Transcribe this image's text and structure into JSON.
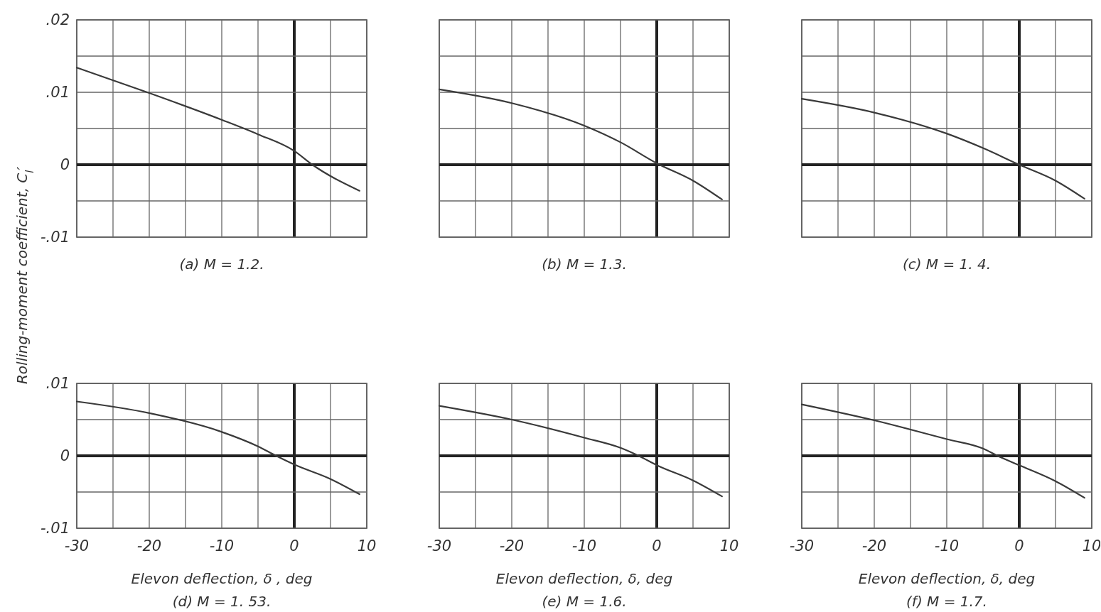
{
  "chart_data": [
    {
      "type": "line",
      "title": "(a) M = 1.2.",
      "ylabel": "Rolling-moment coefficient, C$_{l}$′",
      "x": [
        -30,
        -20,
        -10,
        -5,
        0,
        2.5,
        9
      ],
      "series": [
        {
          "color": "#3a3a3a",
          "values": [
            0.0134,
            0.0099,
            0.0062,
            0.0042,
            0.0019,
            0,
            -0.0036
          ]
        }
      ],
      "xlim": [
        -30,
        10
      ],
      "ylim": [
        -0.01,
        0.02
      ],
      "xticks": [
        {
          "value": -30,
          "label": null
        },
        {
          "value": -25,
          "label": null
        },
        {
          "value": -20,
          "label": null
        },
        {
          "value": -15,
          "label": null
        },
        {
          "value": -10,
          "label": null
        },
        {
          "value": -5,
          "label": null
        },
        {
          "value": 0,
          "label": null
        },
        {
          "value": 5,
          "label": null
        },
        {
          "value": 10,
          "label": null
        }
      ],
      "yticks": [
        {
          "value": -0.01,
          "label": "-.01"
        },
        {
          "value": -0.005,
          "label": null
        },
        0,
        {
          "value": 0.005,
          "label": null
        },
        {
          "value": 0.01,
          "label": ".01"
        },
        {
          "value": 0.015,
          "label": null
        },
        {
          "value": 0.02,
          "label": ".02"
        }
      ],
      "grid": true,
      "tick_labels": "y"
    },
    {
      "type": "line",
      "title": "(b)  M = 1.3.",
      "x": [
        -30,
        -20,
        -10,
        -5,
        0,
        5,
        9
      ],
      "series": [
        {
          "color": "#3a3a3a",
          "values": [
            0.0104,
            0.0085,
            0.0054,
            0.0031,
            0.0002,
            -0.0022,
            -0.0048
          ]
        }
      ],
      "xlim": [
        -30,
        10
      ],
      "ylim": [
        -0.01,
        0.02
      ],
      "xticks": [
        {
          "value": -30,
          "label": null
        },
        {
          "value": -25,
          "label": null
        },
        {
          "value": -20,
          "label": null
        },
        {
          "value": -15,
          "label": null
        },
        {
          "value": -10,
          "label": null
        },
        {
          "value": -5,
          "label": null
        },
        {
          "value": 0,
          "label": null
        },
        {
          "value": 5,
          "label": null
        },
        {
          "value": 10,
          "label": null
        }
      ],
      "yticks": [
        {
          "value": -0.01,
          "label": null
        },
        {
          "value": -0.005,
          "label": null
        },
        {
          "value": 0,
          "label": null
        },
        {
          "value": 0.005,
          "label": null
        },
        {
          "value": 0.01,
          "label": null
        },
        {
          "value": 0.015,
          "label": null
        },
        {
          "value": 0.02,
          "label": null
        }
      ],
      "grid": true,
      "tick_labels": false
    },
    {
      "type": "line",
      "title": "(c) M = 1. 4.",
      "x": [
        -30,
        -20,
        -10,
        -5,
        0,
        5,
        9
      ],
      "series": [
        {
          "color": "#3a3a3a",
          "values": [
            0.0091,
            0.0072,
            0.0043,
            0.0023,
            0,
            -0.0022,
            -0.0047
          ]
        }
      ],
      "xlim": [
        -30,
        10
      ],
      "ylim": [
        -0.01,
        0.02
      ],
      "xticks": [
        {
          "value": -30,
          "label": null
        },
        {
          "value": -25,
          "label": null
        },
        {
          "value": -20,
          "label": null
        },
        {
          "value": -15,
          "label": null
        },
        {
          "value": -10,
          "label": null
        },
        {
          "value": -5,
          "label": null
        },
        {
          "value": 0,
          "label": null
        },
        {
          "value": 5,
          "label": null
        },
        {
          "value": 10,
          "label": null
        }
      ],
      "yticks": [
        {
          "value": -0.01,
          "label": null
        },
        {
          "value": -0.005,
          "label": null
        },
        {
          "value": 0,
          "label": null
        },
        {
          "value": 0.005,
          "label": null
        },
        {
          "value": 0.01,
          "label": null
        },
        {
          "value": 0.015,
          "label": null
        },
        {
          "value": 0.02,
          "label": null
        }
      ],
      "grid": true,
      "tick_labels": false
    },
    {
      "type": "line",
      "title": "(d) M = 1. 53.",
      "xlabel": "Elevon deflection, δ , deg",
      "x": [
        -30,
        -20,
        -10,
        -5,
        -2.5,
        0,
        5,
        9
      ],
      "series": [
        {
          "color": "#3a3a3a",
          "values": [
            0.0075,
            0.0059,
            0.0033,
            0.0013,
            0,
            -0.0012,
            -0.0032,
            -0.0053
          ]
        }
      ],
      "xlim": [
        -30,
        10
      ],
      "ylim": [
        -0.01,
        0.01
      ],
      "xticks": [
        {
          "value": -30,
          "label": "-30"
        },
        {
          "value": -25,
          "label": null
        },
        {
          "value": -20,
          "label": "-20"
        },
        {
          "value": -15,
          "label": null
        },
        {
          "value": -10,
          "label": "-10"
        },
        {
          "value": -5,
          "label": null
        },
        {
          "value": 0,
          "label": "0"
        },
        {
          "value": 5,
          "label": null
        },
        {
          "value": 10,
          "label": "10"
        }
      ],
      "yticks": [
        {
          "value": -0.01,
          "label": "-.01"
        },
        {
          "value": -0.005,
          "label": null
        },
        0,
        {
          "value": 0.005,
          "label": null
        },
        {
          "value": 0.01,
          "label": ".01"
        }
      ],
      "grid": true
    },
    {
      "type": "line",
      "title": "(e) M = 1.6.",
      "xlabel": "Elevon deflection, δ, deg",
      "x": [
        -30,
        -20,
        -10,
        -5,
        -2.5,
        0,
        5,
        9
      ],
      "series": [
        {
          "color": "#3a3a3a",
          "values": [
            0.0069,
            0.005,
            0.0025,
            0.0011,
            0,
            -0.0013,
            -0.0034,
            -0.0056
          ]
        }
      ],
      "xlim": [
        -30,
        10
      ],
      "ylim": [
        -0.01,
        0.01
      ],
      "xticks": [
        {
          "value": -30,
          "label": "-30"
        },
        {
          "value": -25,
          "label": null
        },
        {
          "value": -20,
          "label": "-20"
        },
        {
          "value": -15,
          "label": null
        },
        {
          "value": -10,
          "label": "-10"
        },
        {
          "value": -5,
          "label": null
        },
        {
          "value": 0,
          "label": "0"
        },
        {
          "value": 5,
          "label": null
        },
        {
          "value": 10,
          "label": "10"
        }
      ],
      "yticks": [
        {
          "value": -0.01,
          "label": null
        },
        {
          "value": -0.005,
          "label": null
        },
        {
          "value": 0,
          "label": null
        },
        {
          "value": 0.005,
          "label": null
        },
        {
          "value": 0.01,
          "label": null
        }
      ],
      "grid": true,
      "tick_labels": "x"
    },
    {
      "type": "line",
      "title": "(f) M = 1.7.",
      "xlabel": "Elevon deflection, δ, deg",
      "x": [
        -30,
        -20,
        -10,
        -5,
        -3,
        0,
        5,
        9
      ],
      "series": [
        {
          "color": "#3a3a3a",
          "values": [
            0.0071,
            0.0049,
            0.0023,
            0.001,
            0,
            -0.0013,
            -0.0035,
            -0.0058
          ]
        }
      ],
      "xlim": [
        -30,
        10
      ],
      "ylim": [
        -0.01,
        0.01
      ],
      "xticks": [
        {
          "value": -30,
          "label": "-30"
        },
        {
          "value": -25,
          "label": null
        },
        {
          "value": -20,
          "label": "-20"
        },
        {
          "value": -15,
          "label": null
        },
        {
          "value": -10,
          "label": "-10"
        },
        {
          "value": -5,
          "label": null
        },
        {
          "value": 0,
          "label": "0"
        },
        {
          "value": 5,
          "label": null
        },
        {
          "value": 10,
          "label": "10"
        }
      ],
      "yticks": [
        {
          "value": -0.01,
          "label": null
        },
        {
          "value": -0.005,
          "label": null
        },
        {
          "value": 0,
          "label": null
        },
        {
          "value": 0.005,
          "label": null
        },
        {
          "value": 0.01,
          "label": null
        }
      ],
      "grid": true,
      "tick_labels": "x"
    }
  ]
}
